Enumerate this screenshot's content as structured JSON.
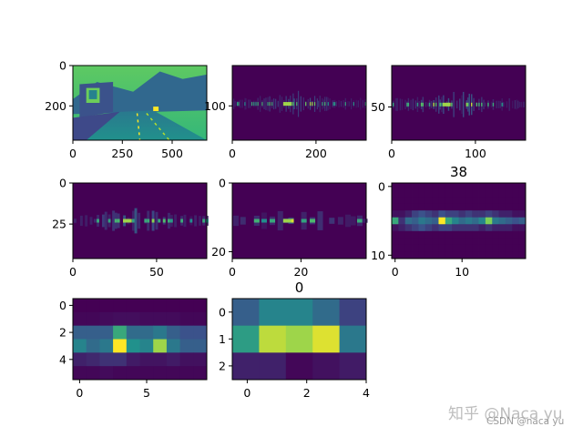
{
  "colormap": [
    "#440154",
    "#3b528b",
    "#21918c",
    "#5ec962",
    "#fde725"
  ],
  "watermark": {
    "zhihu": "知乎 @Naca yu",
    "csdn": "CSDN @naca yu"
  },
  "chart_data": [
    {
      "type": "heatmap",
      "name": "panel-1",
      "title": "",
      "content": "street-scene image rendered with viridis colormap",
      "xlim": [
        0,
        640
      ],
      "ylim": [
        0,
        370
      ],
      "xticks": [
        "0",
        "250",
        "500"
      ],
      "yticks": [
        "0",
        "200"
      ]
    },
    {
      "type": "heatmap",
      "name": "panel-2",
      "title": "",
      "width": 320,
      "height": 185,
      "band_row": 95,
      "band_extent": [
        0,
        320
      ],
      "xticks": [
        "0",
        "200"
      ],
      "yticks": [
        "100"
      ]
    },
    {
      "type": "heatmap",
      "name": "panel-3",
      "title": "",
      "width": 160,
      "height": 90,
      "band_row": 47,
      "band_extent": [
        0,
        160
      ],
      "xticks": [
        "0",
        "100"
      ],
      "yticks": [
        "50"
      ]
    },
    {
      "type": "heatmap",
      "name": "panel-4",
      "title": "",
      "width": 80,
      "height": 46,
      "band_row": 23,
      "band_extent": [
        0,
        80
      ],
      "xticks": [
        "0",
        "50"
      ],
      "yticks": [
        "0",
        "25"
      ]
    },
    {
      "type": "heatmap",
      "name": "panel-5",
      "title": "",
      "width": 39,
      "height": 22,
      "band_row": 11,
      "band_extent": [
        0,
        39
      ],
      "xticks": [
        "0",
        "20"
      ],
      "yticks": [
        "0",
        "20"
      ]
    },
    {
      "type": "heatmap",
      "name": "panel-6",
      "title": "38",
      "xticks": [
        "0",
        "10"
      ],
      "yticks": [
        "0",
        "10"
      ],
      "rows": [
        [
          0,
          0,
          0,
          0,
          0,
          0,
          0,
          0,
          0,
          0,
          0,
          0,
          0,
          0,
          0,
          0,
          0,
          0,
          0,
          0
        ],
        [
          0,
          0,
          0,
          0,
          0,
          0,
          0,
          0,
          0,
          0,
          0,
          0,
          0,
          0,
          0,
          0,
          0,
          0,
          0,
          0
        ],
        [
          0,
          0,
          0,
          0,
          0,
          0,
          0,
          0,
          0,
          0,
          0,
          0,
          0,
          0,
          0,
          0,
          0,
          0,
          0,
          0
        ],
        [
          0,
          0,
          0,
          0,
          0,
          0,
          0,
          0,
          0,
          0,
          0,
          0,
          0,
          0,
          0,
          0,
          0,
          0,
          0,
          0
        ],
        [
          0.05,
          0.05,
          0.1,
          0.2,
          0.25,
          0.2,
          0.15,
          0.25,
          0.2,
          0.2,
          0.15,
          0.2,
          0.15,
          0.15,
          0.2,
          0.15,
          0.1,
          0.1,
          0.05,
          0.05
        ],
        [
          0.6,
          0.15,
          0.35,
          0.3,
          0.4,
          0.35,
          0.3,
          1.0,
          0.6,
          0.45,
          0.35,
          0.4,
          0.35,
          0.45,
          0.8,
          0.4,
          0.35,
          0.3,
          0.25,
          0.3
        ],
        [
          0.05,
          0.1,
          0.15,
          0.2,
          0.25,
          0.2,
          0.15,
          0.2,
          0.2,
          0.15,
          0.15,
          0.15,
          0.15,
          0.1,
          0.15,
          0.1,
          0.1,
          0.1,
          0.05,
          0.05
        ],
        [
          0,
          0,
          0,
          0,
          0,
          0,
          0,
          0,
          0,
          0,
          0,
          0,
          0,
          0,
          0,
          0,
          0,
          0,
          0,
          0
        ],
        [
          0,
          0,
          0,
          0,
          0,
          0,
          0,
          0,
          0,
          0,
          0,
          0,
          0,
          0,
          0,
          0,
          0,
          0,
          0,
          0
        ],
        [
          0,
          0,
          0,
          0,
          0,
          0,
          0,
          0,
          0,
          0,
          0,
          0,
          0,
          0,
          0,
          0,
          0,
          0,
          0,
          0
        ],
        [
          0,
          0,
          0,
          0,
          0,
          0,
          0,
          0,
          0,
          0,
          0,
          0,
          0,
          0,
          0,
          0,
          0,
          0,
          0,
          0
        ]
      ]
    },
    {
      "type": "heatmap",
      "name": "panel-7",
      "title": "",
      "xticks": [
        "0",
        "5"
      ],
      "yticks": [
        "0",
        "2",
        "4"
      ],
      "rows": [
        [
          0,
          0,
          0,
          0,
          0,
          0,
          0,
          0,
          0,
          0
        ],
        [
          0.02,
          0.02,
          0.03,
          0.04,
          0.04,
          0.03,
          0.03,
          0.03,
          0.02,
          0.02
        ],
        [
          0.3,
          0.3,
          0.3,
          0.6,
          0.35,
          0.35,
          0.4,
          0.3,
          0.25,
          0.25
        ],
        [
          0.45,
          0.35,
          0.4,
          1.0,
          0.5,
          0.45,
          0.85,
          0.4,
          0.3,
          0.3
        ],
        [
          0.1,
          0.12,
          0.15,
          0.15,
          0.08,
          0.06,
          0.06,
          0.08,
          0.05,
          0.05
        ],
        [
          0.02,
          0.02,
          0.03,
          0.02,
          0.02,
          0.02,
          0.02,
          0.02,
          0.02,
          0.02
        ]
      ]
    },
    {
      "type": "heatmap",
      "name": "panel-8",
      "title": "0",
      "xticks": [
        "0",
        "2",
        "4"
      ],
      "yticks": [
        "0",
        "1",
        "2"
      ],
      "rows": [
        [
          0.3,
          0.45,
          0.45,
          0.35,
          0.2
        ],
        [
          0.55,
          0.9,
          0.85,
          0.95,
          0.4
        ],
        [
          0.1,
          0.1,
          0.02,
          0.05,
          0.08
        ]
      ]
    }
  ]
}
